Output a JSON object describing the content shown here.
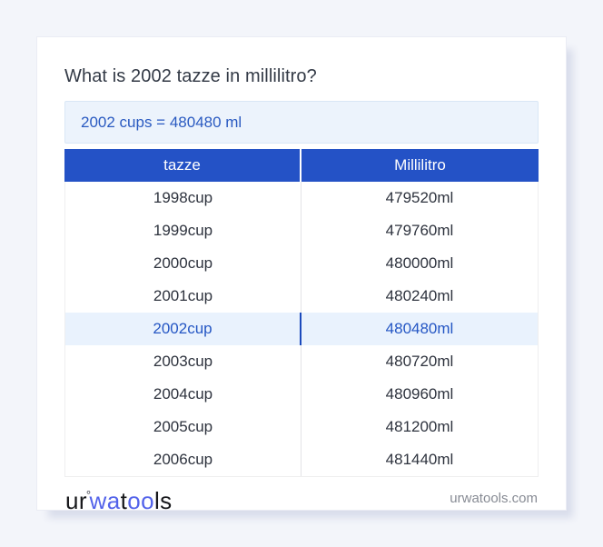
{
  "title": "What is 2002 tazze in millilitro?",
  "result": {
    "text": "2002 cups = 480480 ml"
  },
  "table": {
    "headers": [
      "tazze",
      "Millilitro"
    ],
    "highlighted_row_index": 4,
    "rows": [
      {
        "tazze": "1998cup",
        "ml": "479520ml"
      },
      {
        "tazze": "1999cup",
        "ml": "479760ml"
      },
      {
        "tazze": "2000cup",
        "ml": "480000ml"
      },
      {
        "tazze": "2001cup",
        "ml": "480240ml"
      },
      {
        "tazze": "2002cup",
        "ml": "480480ml"
      },
      {
        "tazze": "2003cup",
        "ml": "480720ml"
      },
      {
        "tazze": "2004cup",
        "ml": "480960ml"
      },
      {
        "tazze": "2005cup",
        "ml": "481200ml"
      },
      {
        "tazze": "2006cup",
        "ml": "481440ml"
      }
    ]
  },
  "footer": {
    "logo": {
      "part1": "ur",
      "degree": "°",
      "part2": "wa",
      "part3": "t",
      "part4": "oo",
      "part5": "ls"
    },
    "website": "urwatools.com"
  },
  "colors": {
    "page_background": "#f3f5fa",
    "header_blue": "#2452c6",
    "result_background": "#ecf3fc",
    "result_text_blue": "#2a5ac1",
    "highlight_row_background": "#e9f2fd",
    "highlight_text_blue": "#2456c4",
    "highlight_divider_blue": "#1b4abc",
    "logo_blue": "#5363ea",
    "cell_text": "#2e333e"
  }
}
